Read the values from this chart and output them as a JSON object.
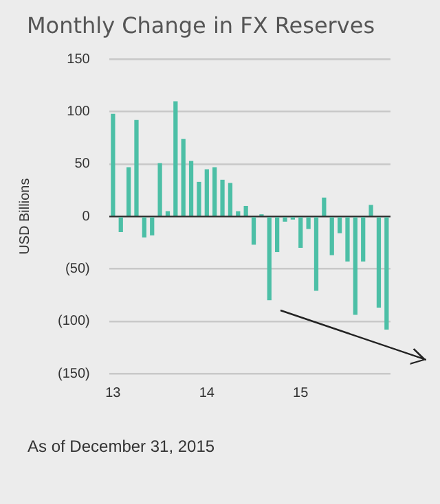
{
  "chart_data": {
    "type": "bar",
    "title": "Monthly Change in FX Reserves",
    "ylabel": "USD Billions",
    "categories": [
      "13",
      null,
      null,
      null,
      null,
      null,
      null,
      null,
      null,
      null,
      null,
      null,
      "14",
      null,
      null,
      null,
      null,
      null,
      null,
      null,
      null,
      null,
      null,
      null,
      "15",
      null,
      null,
      null,
      null,
      null,
      null,
      null,
      null,
      null,
      null,
      null
    ],
    "values": [
      98,
      -15,
      47,
      92,
      -20,
      -18,
      51,
      5,
      110,
      74,
      53,
      33,
      45,
      47,
      35,
      32,
      5,
      10,
      -27,
      2,
      -80,
      -34,
      -5,
      -3,
      -30,
      -12,
      -71,
      18,
      -37,
      -16,
      -43,
      -94,
      -43,
      11,
      -87,
      -108
    ],
    "color": "#4cbfa6",
    "ylim": [
      -150,
      150
    ],
    "yticks": [
      {
        "value": -150,
        "label": "(150)"
      },
      {
        "value": -100,
        "label": "(100)"
      },
      {
        "value": -50,
        "label": "(50)"
      },
      0,
      50,
      100,
      150
    ],
    "grid": "y",
    "legend": false,
    "annotations": [
      "As of December 31, 2015"
    ]
  }
}
